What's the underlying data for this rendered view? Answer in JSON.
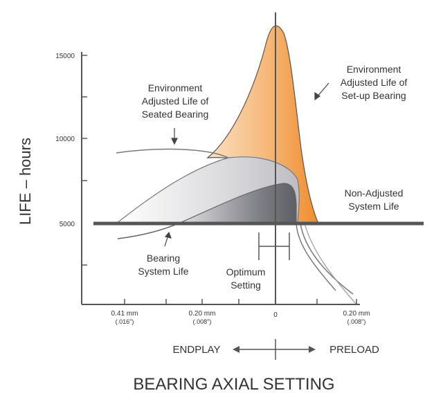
{
  "chart_data": {
    "type": "area",
    "title": "",
    "xlabel": "BEARING AXIAL SETTING",
    "ylabel": "LIFE – hours",
    "y_ticks": [
      "5000",
      "10000",
      "15000"
    ],
    "x_ticks": [
      {
        "value": "0.41 mm",
        "sub": "(.016\")"
      },
      {
        "value": "0.20 mm",
        "sub": "(.008\")"
      },
      {
        "value": "0",
        "sub": ""
      },
      {
        "value": "0.20 mm",
        "sub": "(.008\")"
      }
    ],
    "ylim": [
      0,
      17500
    ],
    "direction_labels": {
      "left": "ENDPLAY",
      "right": "PRELOAD"
    },
    "curves": [
      {
        "name": "Environment Adjusted Life of Set-up Bearing",
        "color": "#f0973a",
        "peak_hours": 16900
      },
      {
        "name": "Environment Adjusted Life of Seated Bearing",
        "color": "#c9c9cd",
        "peak_hours": 9200
      },
      {
        "name": "Bearing System Life",
        "color": "#8a8a90",
        "peak_hours": 7300
      },
      {
        "name": "Non-Adjusted System Life",
        "color": "#555555",
        "value_hours": 5000
      }
    ],
    "annotations": {
      "setup": [
        "Environment",
        "Adjusted Life of",
        "Set-up Bearing"
      ],
      "seated": [
        "Environment",
        "Adjusted Life of",
        "Seated Bearing"
      ],
      "nonadjusted": [
        "Non-Adjusted",
        "System Life"
      ],
      "bearing_system": [
        "Bearing",
        "System Life"
      ],
      "optimum": [
        "Optimum",
        "Setting"
      ]
    }
  }
}
